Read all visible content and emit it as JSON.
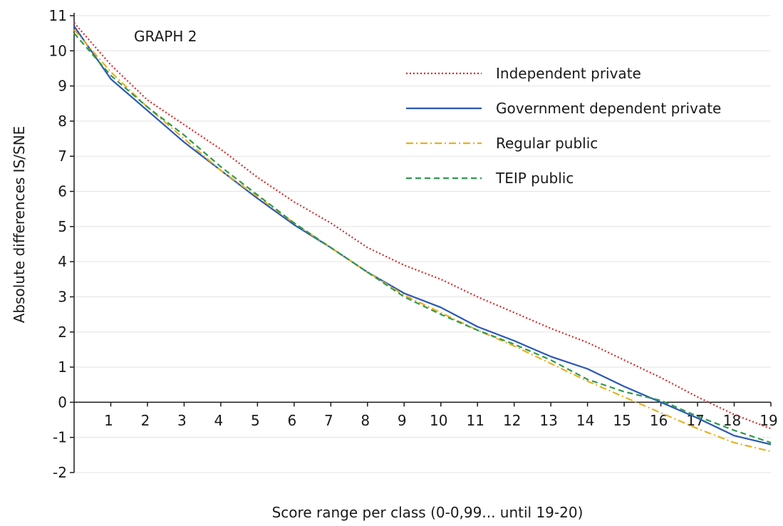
{
  "chart_data": {
    "type": "line",
    "title": "GRAPH 2",
    "xlabel": "Score range per class (0-0,99... until 19-20)",
    "ylabel": "Absolute differences IS/SNE",
    "x": [
      0,
      1,
      2,
      3,
      4,
      5,
      6,
      7,
      8,
      9,
      10,
      11,
      12,
      13,
      14,
      15,
      16,
      17,
      18,
      19
    ],
    "x_tick_labels": [
      "1",
      "2",
      "3",
      "4",
      "5",
      "6",
      "7",
      "8",
      "9",
      "10",
      "11",
      "12",
      "13",
      "14",
      "15",
      "16",
      "17",
      "18",
      "19"
    ],
    "y_ticks": [
      11,
      10,
      9,
      8,
      7,
      6,
      5,
      4,
      3,
      2,
      1,
      0,
      -1,
      -2
    ],
    "xlim": [
      0,
      19
    ],
    "ylim": [
      -2,
      11
    ],
    "grid": "horizontal",
    "legend_position": "top-right",
    "series": [
      {
        "name": "Independent private",
        "color": "#d42a2a",
        "style": "dotted",
        "values": [
          10.8,
          9.6,
          8.6,
          7.9,
          7.2,
          6.4,
          5.7,
          5.1,
          4.4,
          3.9,
          3.5,
          3.0,
          2.55,
          2.1,
          1.7,
          1.2,
          0.7,
          0.15,
          -0.35,
          -0.75
        ]
      },
      {
        "name": "Government dependent private",
        "color": "#2a57b8",
        "style": "solid",
        "values": [
          10.7,
          9.2,
          8.3,
          7.4,
          6.6,
          5.8,
          5.05,
          4.4,
          3.7,
          3.1,
          2.7,
          2.15,
          1.75,
          1.3,
          0.95,
          0.45,
          0.0,
          -0.45,
          -0.95,
          -1.2
        ]
      },
      {
        "name": "Regular public",
        "color": "#e8b020",
        "style": "dashdot",
        "values": [
          10.6,
          9.4,
          8.4,
          7.5,
          6.6,
          5.85,
          5.1,
          4.4,
          3.7,
          3.05,
          2.55,
          2.05,
          1.6,
          1.1,
          0.6,
          0.15,
          -0.3,
          -0.75,
          -1.15,
          -1.4
        ]
      },
      {
        "name": "TEIP public",
        "color": "#2e9a4e",
        "style": "dashed",
        "values": [
          10.5,
          9.3,
          8.4,
          7.6,
          6.7,
          5.9,
          5.1,
          4.4,
          3.7,
          3.0,
          2.5,
          2.05,
          1.65,
          1.2,
          0.65,
          0.3,
          0.05,
          -0.4,
          -0.8,
          -1.15
        ]
      }
    ]
  }
}
